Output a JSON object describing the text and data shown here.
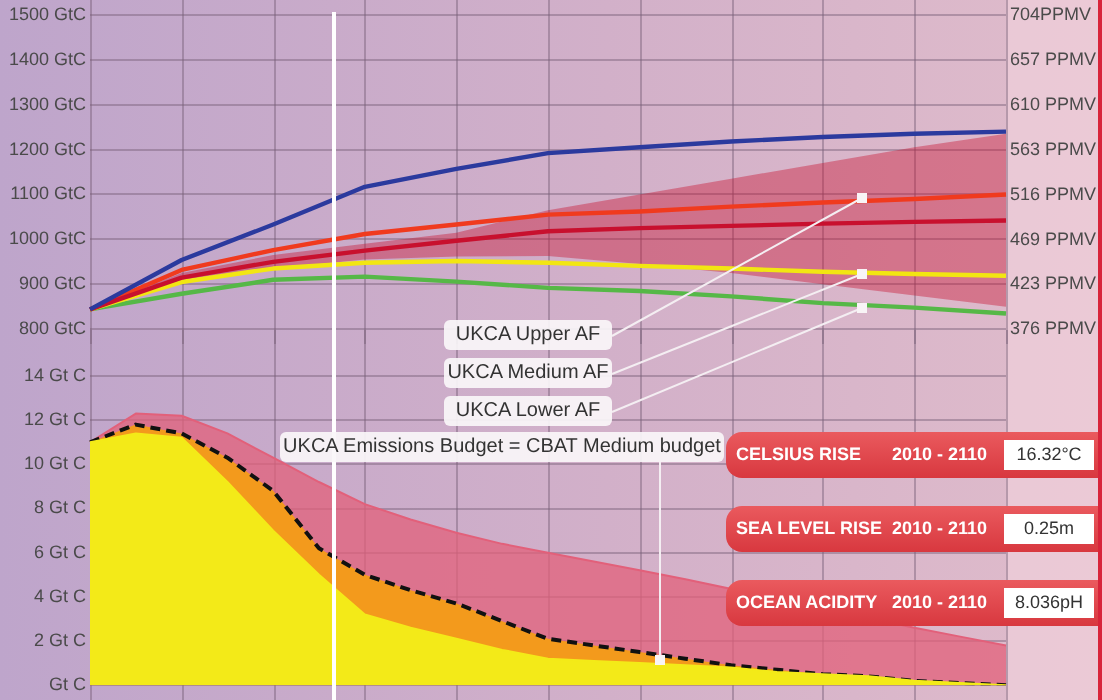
{
  "chart_data": [
    {
      "type": "line",
      "categories": [
        null,
        null,
        null,
        null,
        null,
        null,
        null,
        null,
        null,
        null,
        null
      ],
      "ylim": [
        800,
        1500
      ],
      "yticks": [
        {
          "value": 800,
          "label": "800 GtC"
        },
        {
          "value": 900,
          "label": "900 GtC"
        },
        {
          "value": 1000,
          "label": "1000 GtC"
        },
        {
          "value": 1100,
          "label": "1100 GtC"
        },
        {
          "value": 1200,
          "label": "1200 GtC"
        },
        {
          "value": 1300,
          "label": "1300 GtC"
        },
        {
          "value": 1400,
          "label": "1400 GtC"
        },
        {
          "value": 1500,
          "label": "1500 GtC"
        }
      ],
      "y2lim": [
        376,
        704
      ],
      "y2ticks": [
        {
          "value": 376,
          "label": "376 PPMV"
        },
        {
          "value": 423,
          "label": "423 PPMV"
        },
        {
          "value": 469,
          "label": "469 PPMV"
        },
        {
          "value": 516,
          "label": "516 PPMV"
        },
        {
          "value": 563,
          "label": "563 PPMV"
        },
        {
          "value": 610,
          "label": "610 PPMV"
        },
        {
          "value": 657,
          "label": "657 PPMV"
        },
        {
          "value": 704,
          "label": "704PPMV"
        }
      ],
      "tick_labels": "y",
      "grid": true,
      "annotations": [
        "UKCA Upper AF",
        "UKCA Medium AF",
        "UKCA Lower AF"
      ],
      "series": [
        {
          "color": "#2b3a9e",
          "values": [
            844,
            954,
            1033,
            1117,
            1157,
            1192,
            1205,
            1218,
            1228,
            1235,
            1240
          ]
        },
        {
          "color": "#c8102e",
          "values": [
            844,
            915,
            950,
            975,
            997,
            1018,
            1025,
            1030,
            1035,
            1039,
            1042
          ],
          "lower": [
            844,
            905,
            935,
            955,
            962,
            963,
            945,
            925,
            900,
            875,
            850
          ],
          "upper": [
            844,
            925,
            965,
            990,
            1015,
            1065,
            1100,
            1135,
            1170,
            1205,
            1235
          ]
        },
        {
          "color": "#f03a1e",
          "values": [
            844,
            932,
            976,
            1012,
            1033,
            1055,
            1062,
            1073,
            1082,
            1090,
            1100
          ]
        },
        {
          "color": "#f2e612",
          "values": [
            844,
            905,
            935,
            948,
            952,
            948,
            941,
            935,
            928,
            923,
            919
          ]
        },
        {
          "color": "#56b847",
          "values": [
            844,
            879,
            910,
            917,
            906,
            892,
            885,
            873,
            858,
            848,
            835
          ]
        }
      ]
    },
    {
      "type": "area",
      "categories": [
        null,
        null,
        null,
        null,
        null,
        null,
        null,
        null,
        null,
        null,
        null,
        null,
        null,
        null,
        null,
        null,
        null,
        null,
        null,
        null,
        null
      ],
      "ylim": [
        0,
        14
      ],
      "yticks": [
        {
          "value": 0,
          "label": "Gt C"
        },
        {
          "value": 2,
          "label": "2 Gt C"
        },
        {
          "value": 4,
          "label": "4 Gt C"
        },
        {
          "value": 6,
          "label": "6 Gt C"
        },
        {
          "value": 8,
          "label": "8 Gt C"
        },
        {
          "value": 10,
          "label": "10 Gt C"
        },
        {
          "value": 12,
          "label": "12 Gt C"
        },
        {
          "value": 14,
          "label": "14 Gt C"
        }
      ],
      "tick_labels": "y",
      "grid": true,
      "annotations": [
        "UKCA Emissions Budget = CBAT Medium budget"
      ],
      "series": [
        {
          "color": "#e2607a",
          "values": [
            11.0,
            12.3,
            12.2,
            11.4,
            10.3,
            9.2,
            8.2,
            7.5,
            6.9,
            6.4,
            6.0,
            5.6,
            5.2,
            4.8,
            null,
            null,
            null,
            null,
            2.6,
            2.2,
            1.8
          ]
        },
        {
          "color": "#f39a1c",
          "line_style": "dashed",
          "values": [
            11.0,
            11.8,
            11.4,
            10.3,
            8.8,
            6.2,
            5.0,
            4.3,
            3.7,
            2.9,
            2.1,
            1.8,
            1.5,
            1.2,
            0.9,
            0.7,
            0.5,
            0.4,
            0.2,
            0.1,
            0.0
          ]
        },
        {
          "color": "#f3ea18",
          "values": [
            11.0,
            11.4,
            11.2,
            9.2,
            7.0,
            5.0,
            3.2,
            2.6,
            2.1,
            1.6,
            1.2,
            1.1,
            1.0,
            0.9,
            0.8,
            0.6,
            0.5,
            0.4,
            0.2,
            0.1,
            0.0
          ]
        }
      ]
    },
    {
      "type": "other",
      "annotations": [
        "CELSIUS RISE",
        "2010 - 2110",
        "16.32°C",
        "SEA LEVEL RISE",
        "2010 - 2110",
        "0.25m",
        "OCEAN ACIDITY",
        "2010 - 2110",
        "8.036pH"
      ]
    }
  ]
}
